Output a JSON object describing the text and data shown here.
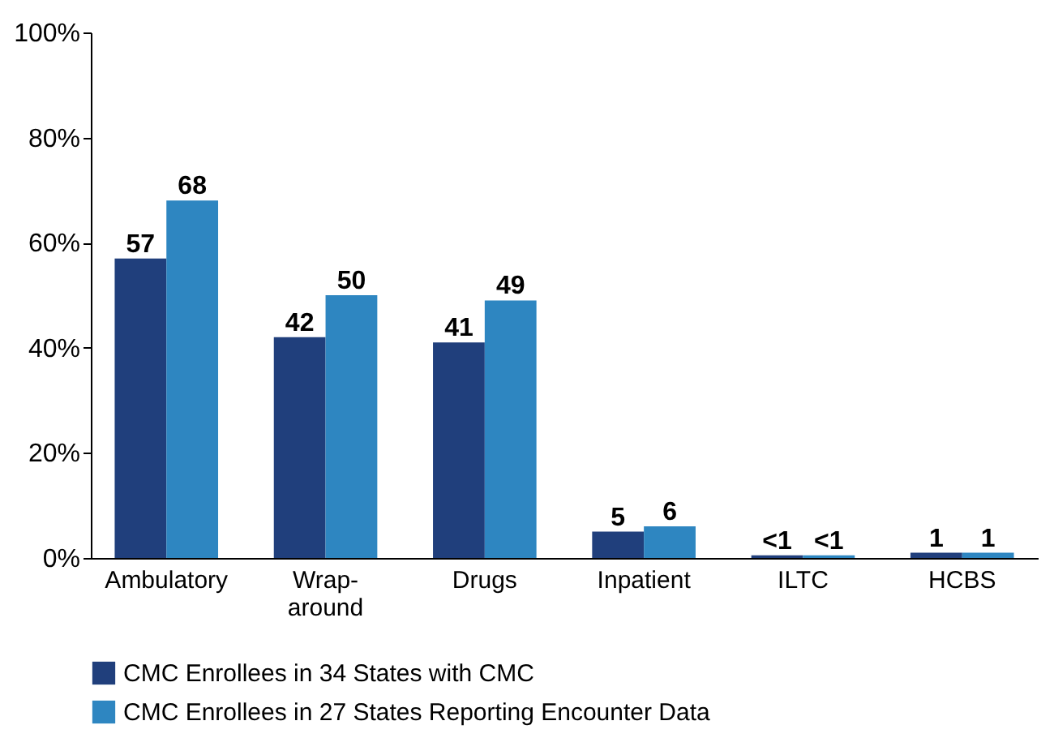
{
  "chart_data": {
    "type": "bar",
    "categories": [
      "Ambulatory",
      "Wrap-around",
      "Drugs",
      "Inpatient",
      "ILTC",
      "HCBS"
    ],
    "series": [
      {
        "name": "CMC Enrollees in 34 States with CMC",
        "color": "#203f7c",
        "values": [
          57,
          42,
          41,
          5,
          0.5,
          1
        ],
        "value_labels": [
          "57",
          "42",
          "41",
          "5",
          "<1",
          "1"
        ]
      },
      {
        "name": "CMC Enrollees in 27 States Reporting Encounter Data",
        "color": "#2e86c1",
        "values": [
          68,
          50,
          49,
          6,
          0.5,
          1
        ],
        "value_labels": [
          "68",
          "50",
          "49",
          "6",
          "<1",
          "1"
        ]
      }
    ],
    "ylim": [
      0,
      100
    ],
    "yticks": [
      {
        "value": 0,
        "label": "0%"
      },
      {
        "value": 20,
        "label": "20%"
      },
      {
        "value": 40,
        "label": "40%"
      },
      {
        "value": 60,
        "label": "60%"
      },
      {
        "value": 80,
        "label": "80%"
      },
      {
        "value": 100,
        "label": "100%"
      }
    ],
    "grid": false,
    "legend": "bottom"
  }
}
